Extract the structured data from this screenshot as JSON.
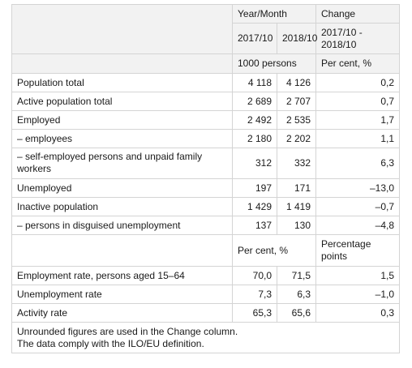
{
  "header": {
    "period_label": "Year/Month",
    "change_label": "Change",
    "col_a": "2017/10",
    "col_b": "2018/10",
    "change_period": "2017/10 - 2018/10",
    "unit_counts": "1000 persons",
    "unit_change_counts": "Per cent, %"
  },
  "rows": [
    {
      "label": "Population total",
      "a": "4 118",
      "b": "4 126",
      "change": "0,2"
    },
    {
      "label": "Active population total",
      "a": "2 689",
      "b": "2 707",
      "change": "0,7"
    },
    {
      "label": "Employed",
      "a": "2 492",
      "b": "2 535",
      "change": "1,7"
    },
    {
      "label": "– employees",
      "a": "2 180",
      "b": "2 202",
      "change": "1,1"
    },
    {
      "label": "– self-employed persons and unpaid family workers",
      "a": "312",
      "b": "332",
      "change": "6,3"
    },
    {
      "label": "Unemployed",
      "a": "197",
      "b": "171",
      "change": "–13,0"
    },
    {
      "label": "Inactive population",
      "a": "1 429",
      "b": "1 419",
      "change": "–0,7"
    },
    {
      "label": "– persons in disguised unemployment",
      "a": "137",
      "b": "130",
      "change": "–4,8"
    }
  ],
  "subheader": {
    "unit_rates": "Per cent, %",
    "unit_change_rates": "Percentage points"
  },
  "rate_rows": [
    {
      "label": "Employment rate, persons aged 15–64",
      "a": "70,0",
      "b": "71,5",
      "change": "1,5"
    },
    {
      "label": "Unemployment rate",
      "a": "7,3",
      "b": "6,3",
      "change": "–1,0"
    },
    {
      "label": "Activity rate",
      "a": "65,3",
      "b": "65,6",
      "change": "0,3"
    }
  ],
  "footnotes": [
    "Unrounded figures are used in the Change column.",
    "The data comply with the ILO/EU definition."
  ],
  "colors": {
    "header_bg": "#f2f2f2",
    "border": "#d4d4d4"
  }
}
